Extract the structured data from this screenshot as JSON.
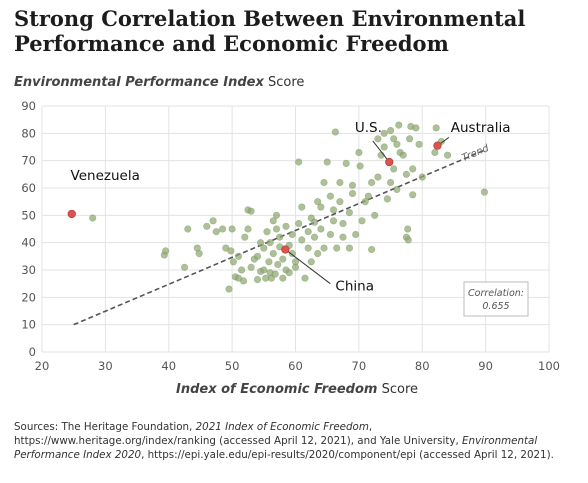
{
  "chart_data": {
    "type": "scatter",
    "title": "Strong Correlation Between Environmental Performance and Economic Freedom",
    "ylabel_italic": "Environmental Performance Index",
    "ylabel_rest": " Score",
    "xlabel_italic": "Index of Economic Freedom",
    "xlabel_rest": " Score",
    "xlim": [
      20,
      100
    ],
    "ylim": [
      0,
      90
    ],
    "xticks": [
      20,
      30,
      40,
      50,
      60,
      70,
      80,
      90,
      100
    ],
    "yticks": [
      0,
      10,
      20,
      30,
      40,
      50,
      60,
      70,
      80,
      90
    ],
    "grid": true,
    "point_color": "#8fa870",
    "highlight_color": "#d9534f",
    "trend": {
      "label": "Trend",
      "x": [
        25,
        90
      ],
      "y": [
        10,
        74
      ]
    },
    "correlation": {
      "label": "Correlation:",
      "value": "0.655"
    },
    "highlights": [
      {
        "name": "Venezuela",
        "x": 24.7,
        "y": 50.5
      },
      {
        "name": "U.S.",
        "x": 74.8,
        "y": 69.5
      },
      {
        "name": "Australia",
        "x": 82.4,
        "y": 75.5
      },
      {
        "name": "China",
        "x": 58.4,
        "y": 37.5
      }
    ],
    "points": [
      [
        28,
        49
      ],
      [
        39.3,
        35.5
      ],
      [
        39.5,
        37
      ],
      [
        42.5,
        31
      ],
      [
        43,
        45
      ],
      [
        44.5,
        38
      ],
      [
        44.8,
        36
      ],
      [
        46,
        46
      ],
      [
        47,
        48
      ],
      [
        47.5,
        44
      ],
      [
        48.5,
        45
      ],
      [
        49,
        38
      ],
      [
        49.5,
        23
      ],
      [
        49.8,
        37
      ],
      [
        50,
        45
      ],
      [
        50.2,
        33
      ],
      [
        50.5,
        27.5
      ],
      [
        51,
        27
      ],
      [
        51,
        35
      ],
      [
        51.5,
        30
      ],
      [
        51.8,
        26
      ],
      [
        52,
        42
      ],
      [
        52.5,
        45
      ],
      [
        52.5,
        52
      ],
      [
        53,
        31
      ],
      [
        53,
        51.5
      ],
      [
        53.5,
        34
      ],
      [
        54,
        35
      ],
      [
        54,
        26.5
      ],
      [
        54.5,
        40
      ],
      [
        54.5,
        29.5
      ],
      [
        55,
        38
      ],
      [
        55,
        30
      ],
      [
        55.3,
        27
      ],
      [
        55.5,
        44
      ],
      [
        55.8,
        33
      ],
      [
        56,
        40
      ],
      [
        56,
        29
      ],
      [
        56.2,
        27
      ],
      [
        56.5,
        48
      ],
      [
        56.5,
        36
      ],
      [
        56.8,
        28.5
      ],
      [
        57,
        50
      ],
      [
        57,
        45
      ],
      [
        57.2,
        32
      ],
      [
        57.5,
        42
      ],
      [
        57.5,
        38.5
      ],
      [
        58,
        34
      ],
      [
        58,
        27
      ],
      [
        58.5,
        30
      ],
      [
        58.5,
        46
      ],
      [
        59,
        39
      ],
      [
        59,
        29
      ],
      [
        59.5,
        43
      ],
      [
        59.5,
        36
      ],
      [
        60,
        33
      ],
      [
        60,
        31
      ],
      [
        60.5,
        47
      ],
      [
        60.5,
        69.5
      ],
      [
        61,
        53
      ],
      [
        61,
        41
      ],
      [
        61.5,
        27
      ],
      [
        62,
        44
      ],
      [
        62,
        38
      ],
      [
        62.5,
        49
      ],
      [
        62.5,
        33
      ],
      [
        63,
        42
      ],
      [
        63,
        47.5
      ],
      [
        63.5,
        36
      ],
      [
        63.5,
        55
      ],
      [
        64,
        53
      ],
      [
        64,
        45
      ],
      [
        64.5,
        38
      ],
      [
        64.5,
        62
      ],
      [
        65,
        69.5
      ],
      [
        65.5,
        43
      ],
      [
        65.5,
        57
      ],
      [
        66,
        52
      ],
      [
        66,
        48
      ],
      [
        66.3,
        80.5
      ],
      [
        66.5,
        38
      ],
      [
        67,
        55
      ],
      [
        67,
        62
      ],
      [
        67.5,
        42
      ],
      [
        67.5,
        47
      ],
      [
        68,
        69
      ],
      [
        68.5,
        51
      ],
      [
        68.5,
        38
      ],
      [
        69,
        58
      ],
      [
        69,
        61
      ],
      [
        69.5,
        43
      ],
      [
        70,
        73
      ],
      [
        70.2,
        68
      ],
      [
        70.5,
        48
      ],
      [
        71,
        55
      ],
      [
        71.5,
        57
      ],
      [
        72,
        62
      ],
      [
        72,
        37.5
      ],
      [
        72.5,
        50
      ],
      [
        73,
        78
      ],
      [
        73,
        64
      ],
      [
        73.5,
        72
      ],
      [
        74,
        80
      ],
      [
        74,
        75
      ],
      [
        74.5,
        56
      ],
      [
        75,
        81
      ],
      [
        75,
        62
      ],
      [
        75.5,
        78
      ],
      [
        75.5,
        67
      ],
      [
        76,
        76
      ],
      [
        76,
        59.5
      ],
      [
        76.3,
        83
      ],
      [
        76.5,
        73
      ],
      [
        77,
        72
      ],
      [
        77.5,
        65
      ],
      [
        77.5,
        42
      ],
      [
        77.7,
        45
      ],
      [
        77.8,
        41
      ],
      [
        78,
        78
      ],
      [
        78.2,
        82.5
      ],
      [
        78.5,
        67
      ],
      [
        78.5,
        57.5
      ],
      [
        79,
        82
      ],
      [
        79.5,
        76
      ],
      [
        80,
        64
      ],
      [
        82,
        73
      ],
      [
        82.2,
        82
      ],
      [
        83,
        77
      ],
      [
        84,
        72
      ],
      [
        89.8,
        58.5
      ]
    ]
  },
  "sources": {
    "prefix": "Sources: The Heritage Foundation, ",
    "ief": "2021 Index of Economic Freedom",
    "mid": ", https://www.heritage.org/index/ranking (accessed April 12, 2021), and Yale University, ",
    "epi": "Environmental Performance Index 2020",
    "suffix": ", https://epi.yale.edu/epi-results/2020/component/epi (accessed April 12, 2021)."
  }
}
